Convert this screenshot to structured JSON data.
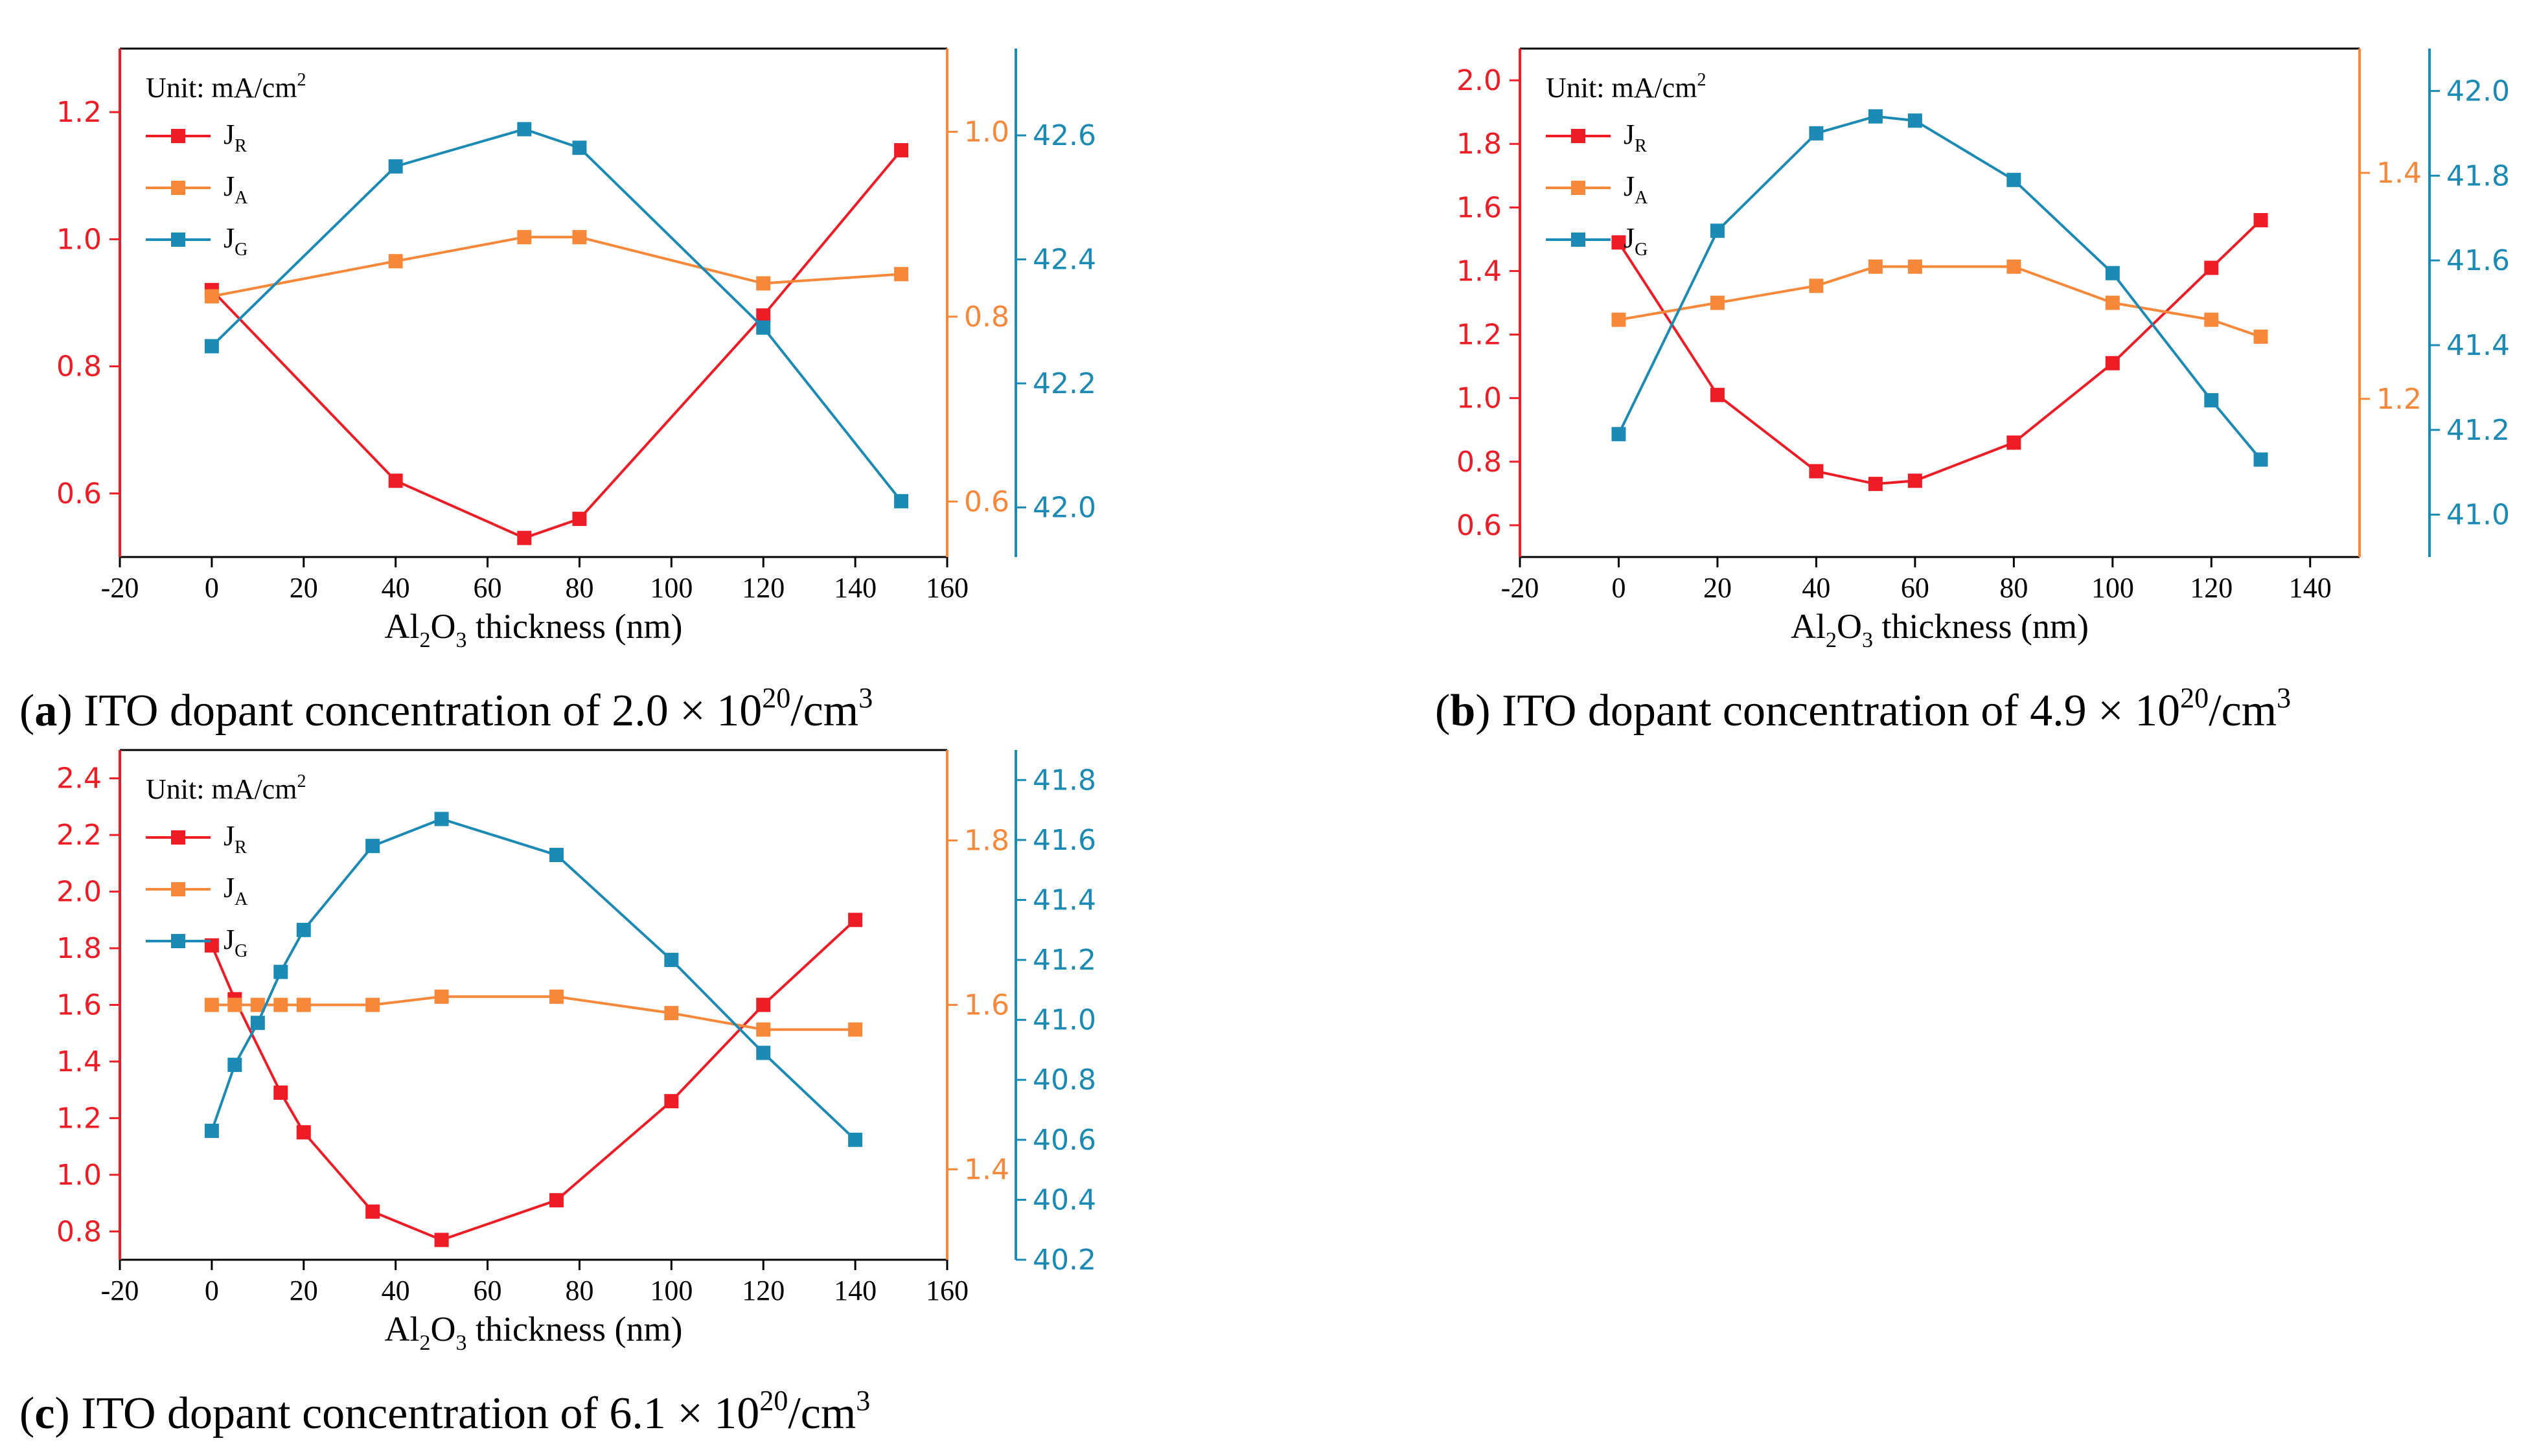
{
  "colors": {
    "jr": "#ee1c25",
    "ja": "#f7883a",
    "jg": "#1b8ab4",
    "axis": "#000000"
  },
  "chart_data": [
    {
      "id": "a",
      "type": "line",
      "legend_title": "Unit: mA/cm",
      "legend_title_sup": "2",
      "legend_placement": "top-left",
      "grid": false,
      "xlabel": {
        "pre": "Al",
        "sub1": "2",
        "mid": "O",
        "sub2": "3",
        "post": " thickness (nm)"
      },
      "xlim": [
        -20,
        160
      ],
      "xticks": [
        -20,
        0,
        20,
        40,
        60,
        80,
        100,
        120,
        140,
        160
      ],
      "caption": {
        "letter": "a",
        "text": " ITO dopant concentration of 2.0 × 10",
        "sup": "20",
        "tail": "/cm",
        "sup2": "3"
      },
      "series": [
        {
          "name": "J",
          "sub": "R",
          "axis": "left",
          "color": "#ee1c25",
          "x": [
            0,
            40,
            68,
            80,
            120,
            150
          ],
          "y": [
            0.92,
            0.62,
            0.53,
            0.56,
            0.88,
            1.14
          ]
        },
        {
          "name": "J",
          "sub": "A",
          "axis": "right1",
          "color": "#f7883a",
          "x": [
            0,
            40,
            68,
            80,
            120,
            150
          ],
          "y": [
            0.822,
            0.86,
            0.886,
            0.886,
            0.836,
            0.846
          ]
        },
        {
          "name": "J",
          "sub": "G",
          "axis": "right2",
          "color": "#1b8ab4",
          "x": [
            0,
            40,
            68,
            80,
            120,
            150
          ],
          "y": [
            42.26,
            42.55,
            42.61,
            42.58,
            42.29,
            42.01
          ]
        }
      ],
      "axes": {
        "left": {
          "range": [
            0.5,
            1.3
          ],
          "ticks": [
            0.6,
            0.8,
            1.0,
            1.2
          ],
          "labels": [
            "0.6",
            "0.8",
            "1.0",
            "1.2"
          ]
        },
        "right1": {
          "range": [
            0.54,
            1.09
          ],
          "ticks": [
            0.6,
            0.8,
            1.0
          ],
          "labels": [
            "0.6",
            "0.8",
            "1.0"
          ]
        },
        "right2": {
          "range": [
            41.92,
            42.74
          ],
          "ticks": [
            42.0,
            42.2,
            42.4,
            42.6
          ],
          "labels": [
            "42.0",
            "42.2",
            "42.4",
            "42.6"
          ]
        }
      }
    },
    {
      "id": "b",
      "type": "line",
      "legend_title": "Unit: mA/cm",
      "legend_title_sup": "2",
      "legend_placement": "top-left",
      "grid": false,
      "xlabel": {
        "pre": "Al",
        "sub1": "2",
        "mid": "O",
        "sub2": "3",
        "post": " thickness (nm)"
      },
      "xlim": [
        -20,
        150
      ],
      "xticks": [
        -20,
        0,
        20,
        40,
        60,
        80,
        100,
        120,
        140
      ],
      "caption": {
        "letter": "b",
        "text": " ITO dopant concentration of 4.9 × 10",
        "sup": "20",
        "tail": "/cm",
        "sup2": "3"
      },
      "series": [
        {
          "name": "J",
          "sub": "R",
          "axis": "left",
          "color": "#ee1c25",
          "x": [
            0,
            20,
            40,
            52,
            60,
            80,
            100,
            120,
            130
          ],
          "y": [
            1.49,
            1.01,
            0.77,
            0.73,
            0.74,
            0.86,
            1.11,
            1.41,
            1.56
          ]
        },
        {
          "name": "J",
          "sub": "A",
          "axis": "right1",
          "color": "#f7883a",
          "x": [
            0,
            20,
            40,
            52,
            60,
            80,
            100,
            120,
            130
          ],
          "y": [
            1.27,
            1.285,
            1.3,
            1.317,
            1.317,
            1.317,
            1.285,
            1.27,
            1.255
          ]
        },
        {
          "name": "J",
          "sub": "G",
          "axis": "right2",
          "color": "#1b8ab4",
          "x": [
            0,
            20,
            40,
            52,
            60,
            80,
            100,
            120,
            130
          ],
          "y": [
            41.19,
            41.67,
            41.9,
            41.94,
            41.93,
            41.79,
            41.57,
            41.27,
            41.13
          ]
        }
      ],
      "axes": {
        "left": {
          "range": [
            0.5,
            2.1
          ],
          "ticks": [
            0.6,
            0.8,
            1.0,
            1.2,
            1.4,
            1.6,
            1.8,
            2.0
          ],
          "labels": [
            "0.6",
            "0.8",
            "1.0",
            "1.2",
            "1.4",
            "1.6",
            "1.8",
            "2.0"
          ]
        },
        "right1": {
          "range": [
            1.06,
            1.51
          ],
          "ticks": [
            1.2,
            1.4
          ],
          "labels": [
            "1.2",
            "1.4"
          ]
        },
        "right2": {
          "range": [
            40.9,
            42.1
          ],
          "ticks": [
            41.0,
            41.2,
            41.4,
            41.6,
            41.8,
            42.0
          ],
          "labels": [
            "41.0",
            "41.2",
            "41.4",
            "41.6",
            "41.8",
            "42.0"
          ]
        }
      }
    },
    {
      "id": "c",
      "type": "line",
      "legend_title": "Unit: mA/cm",
      "legend_title_sup": "2",
      "legend_placement": "top-left",
      "grid": false,
      "xlabel": {
        "pre": "Al",
        "sub1": "2",
        "mid": "O",
        "sub2": "3",
        "post": " thickness (nm)"
      },
      "xlim": [
        -20,
        160
      ],
      "xticks": [
        -20,
        0,
        20,
        40,
        60,
        80,
        100,
        120,
        140,
        160
      ],
      "caption": {
        "letter": "c",
        "text": " ITO dopant concentration of 6.1 × 10",
        "sup": "20",
        "tail": "/cm",
        "sup2": "3"
      },
      "series": [
        {
          "name": "J",
          "sub": "R",
          "axis": "left",
          "color": "#ee1c25",
          "x": [
            0,
            5,
            15,
            20,
            35,
            50,
            75,
            100,
            120,
            140
          ],
          "y": [
            1.81,
            1.62,
            1.29,
            1.15,
            0.87,
            0.77,
            0.91,
            1.26,
            1.6,
            1.9
          ]
        },
        {
          "name": "J",
          "sub": "A",
          "axis": "right1",
          "color": "#f7883a",
          "x": [
            0,
            5,
            10,
            15,
            20,
            35,
            50,
            75,
            100,
            120,
            140
          ],
          "y": [
            1.6,
            1.6,
            1.6,
            1.6,
            1.6,
            1.6,
            1.61,
            1.61,
            1.59,
            1.57,
            1.57
          ]
        },
        {
          "name": "J",
          "sub": "G",
          "axis": "right2",
          "color": "#1b8ab4",
          "x": [
            0,
            5,
            10,
            15,
            20,
            35,
            50,
            75,
            100,
            120,
            140
          ],
          "y": [
            40.63,
            40.85,
            40.99,
            41.16,
            41.3,
            41.58,
            41.67,
            41.55,
            41.2,
            40.89,
            40.6
          ]
        }
      ],
      "axes": {
        "left": {
          "range": [
            0.7,
            2.5
          ],
          "ticks": [
            0.8,
            1.0,
            1.2,
            1.4,
            1.6,
            1.8,
            2.0,
            2.2,
            2.4
          ],
          "labels": [
            "0.8",
            "1.0",
            "1.2",
            "1.4",
            "1.6",
            "1.8",
            "2.0",
            "2.2",
            "2.4"
          ]
        },
        "right1": {
          "range": [
            1.29,
            1.91
          ],
          "ticks": [
            1.4,
            1.6,
            1.8
          ],
          "labels": [
            "1.4",
            "1.6",
            "1.8"
          ]
        },
        "right2": {
          "range": [
            40.2,
            41.9
          ],
          "ticks": [
            40.2,
            40.4,
            40.6,
            40.8,
            41.0,
            41.2,
            41.4,
            41.6,
            41.8
          ],
          "labels": [
            "40.2",
            "40.4",
            "40.6",
            "40.8",
            "41.0",
            "41.2",
            "41.4",
            "41.6",
            "41.8"
          ]
        }
      }
    }
  ]
}
